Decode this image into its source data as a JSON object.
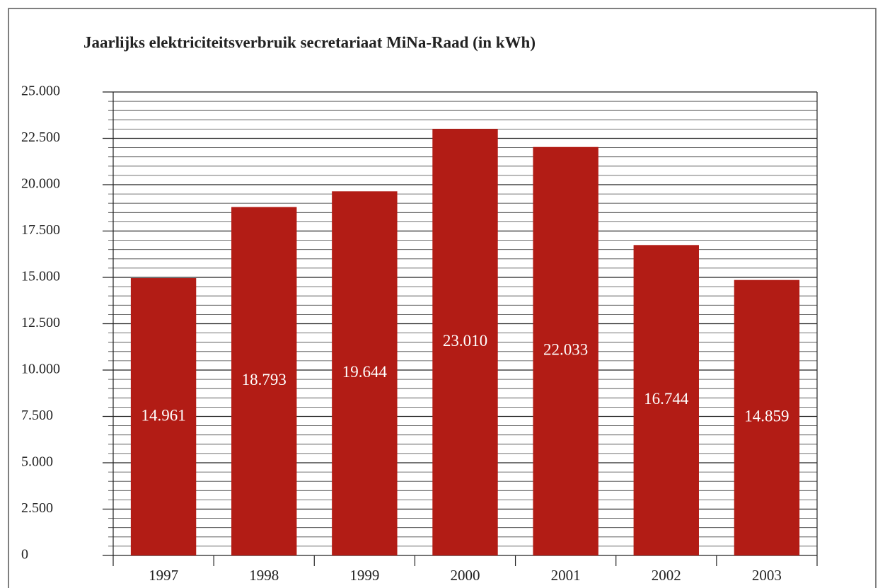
{
  "chart_data": {
    "type": "bar",
    "title": "Jaarlijks elektriciteitsverbruik secretariaat MiNa-Raad (in kWh)",
    "categories": [
      "1997",
      "1998",
      "1999",
      "2000",
      "2001",
      "2002",
      "2003"
    ],
    "values": [
      14961,
      18793,
      19644,
      23010,
      22033,
      16744,
      14859
    ],
    "value_labels": [
      "14.961",
      "18.793",
      "19.644",
      "23.010",
      "22.033",
      "16.744",
      "14.859"
    ],
    "color": "#b21c15",
    "ylim": [
      0,
      25000
    ],
    "yticks": [
      0,
      {
        "value": 2500,
        "label": "2.500"
      },
      {
        "value": 5000,
        "label": "5.000"
      },
      {
        "value": 7500,
        "label": "7.500"
      },
      {
        "value": 10000,
        "label": "10.000"
      },
      {
        "value": 12500,
        "label": "12.500"
      },
      {
        "value": 15000,
        "label": "15.000"
      },
      {
        "value": 17500,
        "label": "17.500"
      },
      {
        "value": 20000,
        "label": "20.000"
      },
      {
        "value": 22500,
        "label": "22.500"
      },
      {
        "value": 25000,
        "label": "25.000"
      }
    ],
    "grid": true,
    "minor_grid_step": 500
  }
}
